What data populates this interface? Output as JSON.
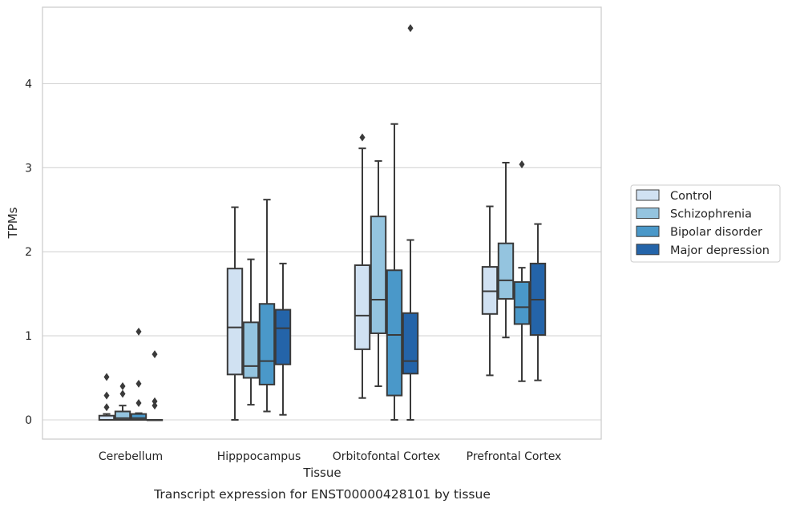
{
  "caption": "Transcript expression for ENST00000428101 by tissue",
  "chart_data": {
    "type": "box",
    "title": "",
    "xlabel": "Tissue",
    "ylabel": "TPMs",
    "ylim": [
      -0.23,
      4.9
    ],
    "yticks": [
      0,
      1,
      2,
      3,
      4
    ],
    "grid": "horizontal",
    "legend_position": "right",
    "categories": [
      "Cerebellum",
      "Hipppocampus",
      "Orbitofontal Cortex",
      "Prefrontal Cortex"
    ],
    "series": [
      {
        "name": "Control",
        "color": "#d0e1f2",
        "boxes": [
          {
            "whisker_low": 0.0,
            "q1": 0.0,
            "median": 0.0,
            "q3": 0.05,
            "whisker_high": 0.07,
            "outliers": [
              0.15,
              0.29,
              0.51
            ]
          },
          {
            "whisker_low": 0.0,
            "q1": 0.54,
            "median": 1.1,
            "q3": 1.8,
            "whisker_high": 2.53,
            "outliers": []
          },
          {
            "whisker_low": 0.26,
            "q1": 0.84,
            "median": 1.24,
            "q3": 1.84,
            "whisker_high": 3.23,
            "outliers": [
              3.36
            ]
          },
          {
            "whisker_low": 0.53,
            "q1": 1.26,
            "median": 1.53,
            "q3": 1.82,
            "whisker_high": 2.54,
            "outliers": []
          }
        ]
      },
      {
        "name": "Schizophrenia",
        "color": "#94c4df",
        "boxes": [
          {
            "whisker_low": 0.0,
            "q1": 0.0,
            "median": 0.02,
            "q3": 0.1,
            "whisker_high": 0.17,
            "outliers": [
              0.31,
              0.4
            ]
          },
          {
            "whisker_low": 0.18,
            "q1": 0.5,
            "median": 0.64,
            "q3": 1.16,
            "whisker_high": 1.91,
            "outliers": []
          },
          {
            "whisker_low": 0.4,
            "q1": 1.03,
            "median": 1.43,
            "q3": 2.42,
            "whisker_high": 3.08,
            "outliers": []
          },
          {
            "whisker_low": 0.98,
            "q1": 1.44,
            "median": 1.66,
            "q3": 2.1,
            "whisker_high": 3.06,
            "outliers": []
          }
        ]
      },
      {
        "name": "Bipolar disorder",
        "color": "#4a98c9",
        "boxes": [
          {
            "whisker_low": 0.0,
            "q1": 0.0,
            "median": 0.02,
            "q3": 0.07,
            "whisker_high": 0.08,
            "outliers": [
              0.2,
              0.43,
              1.05
            ]
          },
          {
            "whisker_low": 0.1,
            "q1": 0.42,
            "median": 0.7,
            "q3": 1.38,
            "whisker_high": 2.62,
            "outliers": []
          },
          {
            "whisker_low": 0.0,
            "q1": 0.29,
            "median": 1.01,
            "q3": 1.78,
            "whisker_high": 3.52,
            "outliers": []
          },
          {
            "whisker_low": 0.46,
            "q1": 1.14,
            "median": 1.34,
            "q3": 1.64,
            "whisker_high": 1.81,
            "outliers": [
              3.04
            ]
          }
        ]
      },
      {
        "name": "Major depression",
        "color": "#2464a9",
        "boxes": [
          {
            "whisker_low": 0.0,
            "q1": 0.0,
            "median": 0.0,
            "q3": 0.0,
            "whisker_high": 0.0,
            "outliers": [
              0.17,
              0.22,
              0.78
            ]
          },
          {
            "whisker_low": 0.06,
            "q1": 0.66,
            "median": 1.09,
            "q3": 1.31,
            "whisker_high": 1.86,
            "outliers": []
          },
          {
            "whisker_low": 0.0,
            "q1": 0.55,
            "median": 0.7,
            "q3": 1.27,
            "whisker_high": 2.14,
            "outliers": [
              4.66
            ]
          },
          {
            "whisker_low": 0.47,
            "q1": 1.01,
            "median": 1.43,
            "q3": 1.86,
            "whisker_high": 2.33,
            "outliers": []
          }
        ]
      }
    ]
  }
}
